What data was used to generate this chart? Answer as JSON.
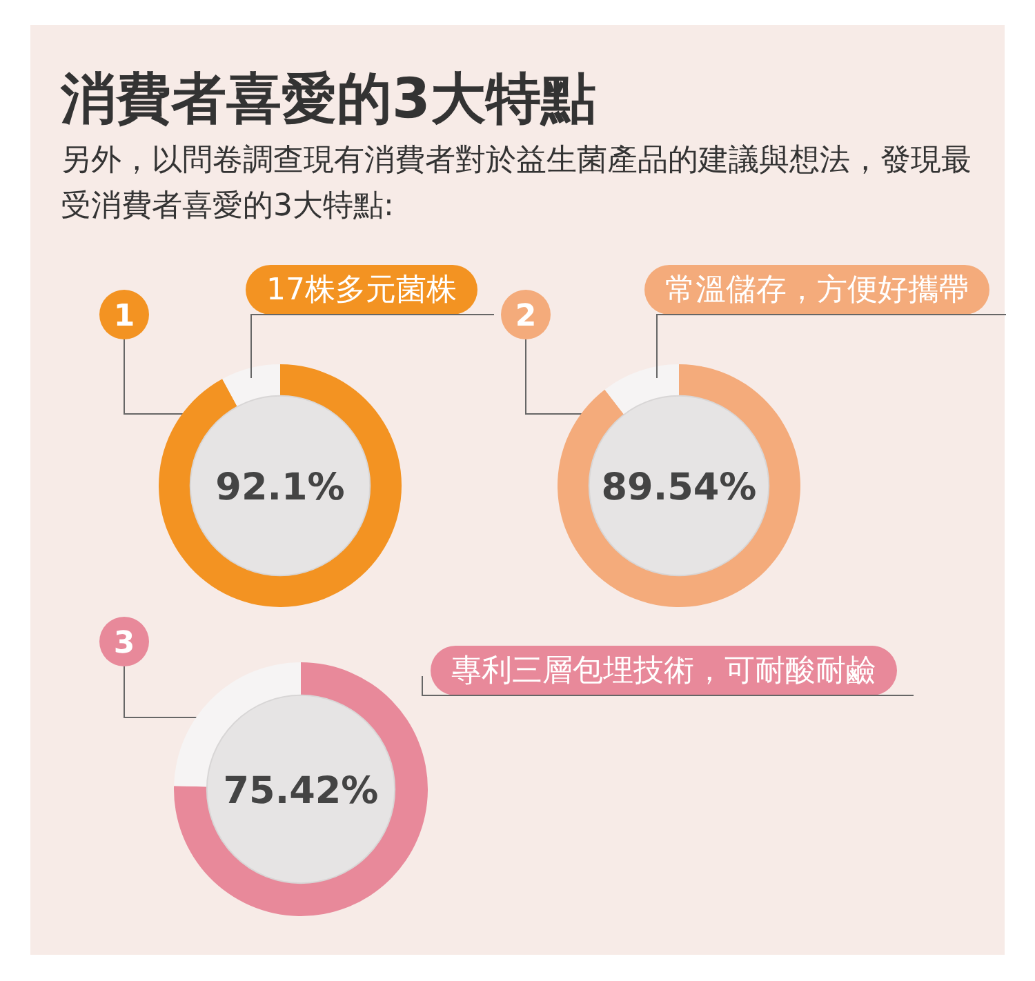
{
  "chart_data": [
    {
      "type": "other",
      "title": "消費者喜愛的3大特點",
      "subtitle": "另外，以問卷調查現有消費者對於益生菌產品的建議與想法，發現最受消費者喜愛的3大特點:"
    },
    {
      "type": "donut",
      "title": "17株多元菌株",
      "categories": [
        null,
        null
      ],
      "values": [
        92.1,
        7.9
      ],
      "colors": [
        "#f39322",
        "#f6f4f4"
      ],
      "value_labels": [
        "92.1%",
        null
      ],
      "annotations": [
        "1"
      ]
    },
    {
      "type": "donut",
      "title": "常溫儲存，方便好攜帶",
      "categories": [
        null,
        null
      ],
      "values": [
        89.54,
        10.46
      ],
      "colors": [
        "#f4ab7b",
        "#f6f4f4"
      ],
      "value_labels": [
        "89.54%",
        null
      ],
      "annotations": [
        "2"
      ]
    },
    {
      "type": "donut",
      "title": "專利三層包埋技術，可耐酸耐鹼",
      "categories": [
        null,
        null
      ],
      "values": [
        75.42,
        24.58
      ],
      "colors": [
        "#e8899a",
        "#f6f4f4"
      ],
      "value_labels": [
        "75.42%",
        null
      ],
      "annotations": [
        "3"
      ]
    }
  ]
}
